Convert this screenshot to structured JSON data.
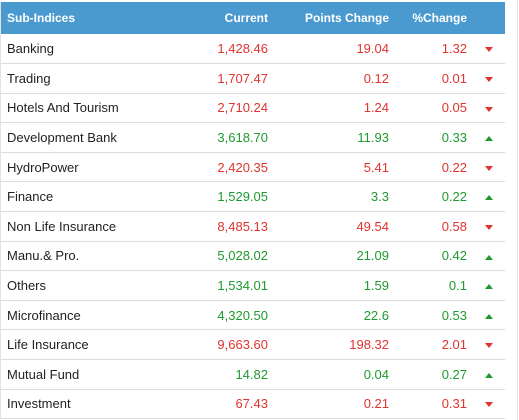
{
  "table": {
    "headers": {
      "name": "Sub-Indices",
      "current": "Current",
      "points_change": "Points Change",
      "percent_change": "%Change"
    },
    "colors": {
      "header_bg": "#4a9ad0",
      "up": "#1e9a2e",
      "down": "#e0342e"
    },
    "rows": [
      {
        "name": "Banking",
        "current": "1,428.46",
        "points": "19.04",
        "percent": "1.32",
        "direction": "down",
        "icon": "triangle-down-icon"
      },
      {
        "name": "Trading",
        "current": "1,707.47",
        "points": "0.12",
        "percent": "0.01",
        "direction": "down",
        "icon": "triangle-down-icon"
      },
      {
        "name": "Hotels And Tourism",
        "current": "2,710.24",
        "points": "1.24",
        "percent": "0.05",
        "direction": "down",
        "icon": "triangle-down-icon"
      },
      {
        "name": "Development Bank",
        "current": "3,618.70",
        "points": "11.93",
        "percent": "0.33",
        "direction": "up",
        "icon": "triangle-up-icon"
      },
      {
        "name": "HydroPower",
        "current": "2,420.35",
        "points": "5.41",
        "percent": "0.22",
        "direction": "down",
        "icon": "triangle-down-icon"
      },
      {
        "name": "Finance",
        "current": "1,529.05",
        "points": "3.3",
        "percent": "0.22",
        "direction": "up",
        "icon": "triangle-up-icon"
      },
      {
        "name": "Non Life Insurance",
        "current": "8,485.13",
        "points": "49.54",
        "percent": "0.58",
        "direction": "down",
        "icon": "triangle-down-icon"
      },
      {
        "name": "Manu.& Pro.",
        "current": "5,028.02",
        "points": "21.09",
        "percent": "0.42",
        "direction": "up",
        "icon": "triangle-up-icon"
      },
      {
        "name": "Others",
        "current": "1,534.01",
        "points": "1.59",
        "percent": "0.1",
        "direction": "up",
        "icon": "triangle-up-icon"
      },
      {
        "name": "Microfinance",
        "current": "4,320.50",
        "points": "22.6",
        "percent": "0.53",
        "direction": "up",
        "icon": "triangle-up-icon"
      },
      {
        "name": "Life Insurance",
        "current": "9,663.60",
        "points": "198.32",
        "percent": "2.01",
        "direction": "down",
        "icon": "triangle-down-icon"
      },
      {
        "name": "Mutual Fund",
        "current": "14.82",
        "points": "0.04",
        "percent": "0.27",
        "direction": "up",
        "icon": "triangle-up-icon"
      },
      {
        "name": "Investment",
        "current": "67.43",
        "points": "0.21",
        "percent": "0.31",
        "direction": "down",
        "icon": "triangle-down-icon"
      }
    ]
  }
}
